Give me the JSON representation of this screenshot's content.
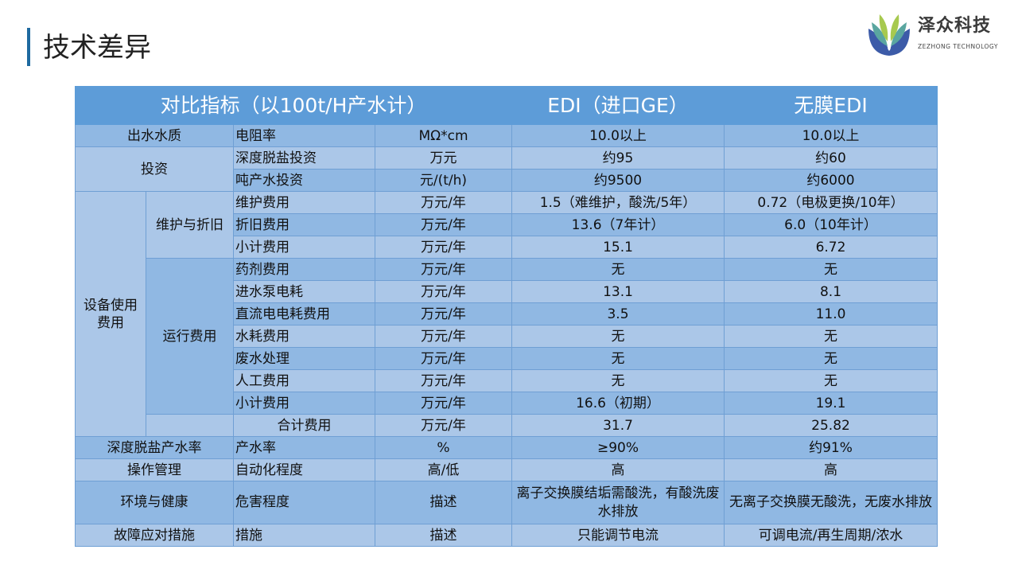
{
  "title": "技术差异",
  "logo": {
    "name_cn": "泽众科技",
    "name_en": "ZEZHONG TECHNOLOGY"
  },
  "header": {
    "indicator": "对比指标（以100t/H产水计）",
    "edi": "EDI（进口GE）",
    "membraneless": "无膜EDI"
  },
  "groups": {
    "water_quality": "出水水质",
    "investment": "投资",
    "usage_cost": "设备使用费用",
    "maint": "维护与折旧",
    "running": "运行费用",
    "desalt_rate": "深度脱盐产水率",
    "operation": "操作管理",
    "env": "环境与健康",
    "fault": "故障应对措施"
  },
  "rows": [
    {
      "item": "电阻率",
      "unit": "MΩ*cm",
      "edi": "10.0以上",
      "mem": "10.0以上"
    },
    {
      "item": "深度脱盐投资",
      "unit": "万元",
      "edi": "约95",
      "mem": "约60"
    },
    {
      "item": "吨产水投资",
      "unit": "元/(t/h)",
      "edi": "约9500",
      "mem": "约6000"
    },
    {
      "item": "维护费用",
      "unit": "万元/年",
      "edi": "1.5（难维护，酸洗/5年）",
      "mem": "0.72（电极更换/10年）"
    },
    {
      "item": "折旧费用",
      "unit": "万元/年",
      "edi": "13.6（7年计）",
      "mem": "6.0（10年计）"
    },
    {
      "item": "小计费用",
      "unit": "万元/年",
      "edi": "15.1",
      "mem": "6.72"
    },
    {
      "item": "药剂费用",
      "unit": "万元/年",
      "edi": "无",
      "mem": "无"
    },
    {
      "item": "进水泵电耗",
      "unit": "万元/年",
      "edi": "13.1",
      "mem": "8.1"
    },
    {
      "item": "直流电电耗费用",
      "unit": "万元/年",
      "edi": "3.5",
      "mem": "11.0"
    },
    {
      "item": "水耗费用",
      "unit": "万元/年",
      "edi": "无",
      "mem": "无"
    },
    {
      "item": "废水处理",
      "unit": "万元/年",
      "edi": "无",
      "mem": "无"
    },
    {
      "item": "人工费用",
      "unit": "万元/年",
      "edi": "无",
      "mem": "无"
    },
    {
      "item": "小计费用",
      "unit": "万元/年",
      "edi": "16.6（初期）",
      "mem": "19.1"
    },
    {
      "item": "合计费用",
      "unit": "万元/年",
      "edi": "31.7",
      "mem": "25.82"
    },
    {
      "item": "产水率",
      "unit": "%",
      "edi": "≥90%",
      "mem": "约91%"
    },
    {
      "item": "自动化程度",
      "unit": "高/低",
      "edi": "高",
      "mem": "高"
    },
    {
      "item": "危害程度",
      "unit": "描述",
      "edi": "离子交换膜结垢需酸洗，有酸洗废水排放",
      "mem": "无离子交换膜无酸洗，无废水排放"
    },
    {
      "item": "措施",
      "unit": "描述",
      "edi": "只能调节电流",
      "mem": "可调电流/再生周期/浓水"
    }
  ],
  "colors": {
    "header": "#5d9cd8",
    "row_dark": "#90b8e3",
    "row_light": "#abc7e8",
    "accent_bar": "#1f6aa0"
  }
}
